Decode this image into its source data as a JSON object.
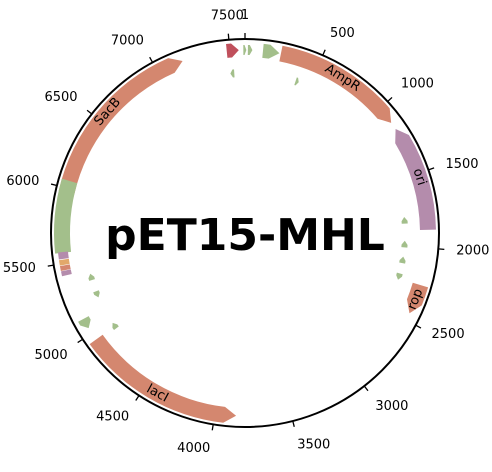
{
  "plasmid": {
    "name": "pET15-MHL",
    "length": 7600
  },
  "ticks": [
    {
      "pos": 1,
      "label": "1"
    },
    {
      "pos": 500,
      "label": "500"
    },
    {
      "pos": 1000,
      "label": "1000"
    },
    {
      "pos": 1500,
      "label": "1500"
    },
    {
      "pos": 2000,
      "label": "2000"
    },
    {
      "pos": 2500,
      "label": "2500"
    },
    {
      "pos": 3000,
      "label": "3000"
    },
    {
      "pos": 3500,
      "label": "3500"
    },
    {
      "pos": 4000,
      "label": "4000"
    },
    {
      "pos": 4500,
      "label": "4500"
    },
    {
      "pos": 5000,
      "label": "5000"
    },
    {
      "pos": 5500,
      "label": "5500"
    },
    {
      "pos": 6000,
      "label": "6000"
    },
    {
      "pos": 6500,
      "label": "6500"
    },
    {
      "pos": 7000,
      "label": "7000"
    },
    {
      "pos": 7500,
      "label": "7500"
    }
  ],
  "colors": {
    "gene": "#d4876f",
    "origin": "#b48cac",
    "small": "#a3bf8b",
    "red": "#c0505c",
    "orange": "#e2a86a",
    "outline": "#000000"
  },
  "features": [
    {
      "label": "AmpR",
      "start": 240,
      "end": 1120,
      "strand": 1,
      "lane": 0,
      "width": 16,
      "color": "gene"
    },
    {
      "label": "ori",
      "start": 1170,
      "end": 1880,
      "strand": -1,
      "lane": 0,
      "width": 16,
      "color": "origin"
    },
    {
      "label": "rop",
      "start": 2250,
      "end": 2450,
      "strand": 1,
      "lane": 0,
      "width": 16,
      "color": "gene"
    },
    {
      "label": "lacI",
      "start": 3860,
      "end": 4950,
      "strand": -1,
      "lane": 0,
      "width": 16,
      "color": "gene"
    },
    {
      "label": "SacB",
      "start": 5970,
      "end": 7180,
      "strand": 1,
      "lane": 0,
      "width": 16,
      "color": "gene"
    },
    {
      "label": "",
      "start": 5570,
      "end": 6050,
      "strand": 0,
      "lane": 0,
      "width": 16,
      "color": "small"
    },
    {
      "label": "",
      "start": 5040,
      "end": 5110,
      "strand": -1,
      "lane": 0,
      "width": 12,
      "color": "small"
    },
    {
      "label": "",
      "start": 5530,
      "end": 5575,
      "strand": 0,
      "lane": 0,
      "width": 10,
      "color": "origin"
    },
    {
      "label": "",
      "start": 5490,
      "end": 5525,
      "strand": 0,
      "lane": 0,
      "width": 10,
      "color": "orange"
    },
    {
      "label": "",
      "start": 5455,
      "end": 5487,
      "strand": 0,
      "lane": 0,
      "width": 10,
      "color": "gene"
    },
    {
      "label": "",
      "start": 5420,
      "end": 5452,
      "strand": 0,
      "lane": 0,
      "width": 10,
      "color": "origin"
    },
    {
      "label": "",
      "start": 7480,
      "end": 7560,
      "strand": 1,
      "lane": 0,
      "width": 14,
      "color": "red"
    },
    {
      "label": "",
      "start": 120,
      "end": 230,
      "strand": 1,
      "lane": 0,
      "width": 14,
      "color": "small"
    },
    {
      "label": "",
      "start": 20,
      "end": 50,
      "strand": 1,
      "lane": 0,
      "width": 10,
      "color": "small"
    },
    {
      "label": "",
      "start": 7590,
      "end": 7610,
      "strand": 1,
      "lane": 0,
      "width": 10,
      "color": "small"
    },
    {
      "label": "",
      "start": 7490,
      "end": 7520,
      "strand": -1,
      "lane": 1,
      "width": 8,
      "color": "small"
    },
    {
      "label": "",
      "start": 390,
      "end": 415,
      "strand": 1,
      "lane": 1,
      "width": 8,
      "color": "small"
    },
    {
      "label": "",
      "start": 1780,
      "end": 1830,
      "strand": -1,
      "lane": 1,
      "width": 6,
      "color": "small"
    },
    {
      "label": "",
      "start": 1960,
      "end": 2010,
      "strand": -1,
      "lane": 1,
      "width": 6,
      "color": "small"
    },
    {
      "label": "",
      "start": 2080,
      "end": 2130,
      "strand": -1,
      "lane": 1,
      "width": 6,
      "color": "small"
    },
    {
      "label": "",
      "start": 2210,
      "end": 2260,
      "strand": 1,
      "lane": 1,
      "width": 6,
      "color": "small"
    },
    {
      "label": "",
      "start": 5340,
      "end": 5390,
      "strand": 1,
      "lane": 1,
      "width": 6,
      "color": "small"
    },
    {
      "label": "",
      "start": 5200,
      "end": 5250,
      "strand": -1,
      "lane": 1,
      "width": 6,
      "color": "small"
    },
    {
      "label": "",
      "start": 4930,
      "end": 4980,
      "strand": 1,
      "lane": 1,
      "width": 6,
      "color": "small"
    }
  ]
}
